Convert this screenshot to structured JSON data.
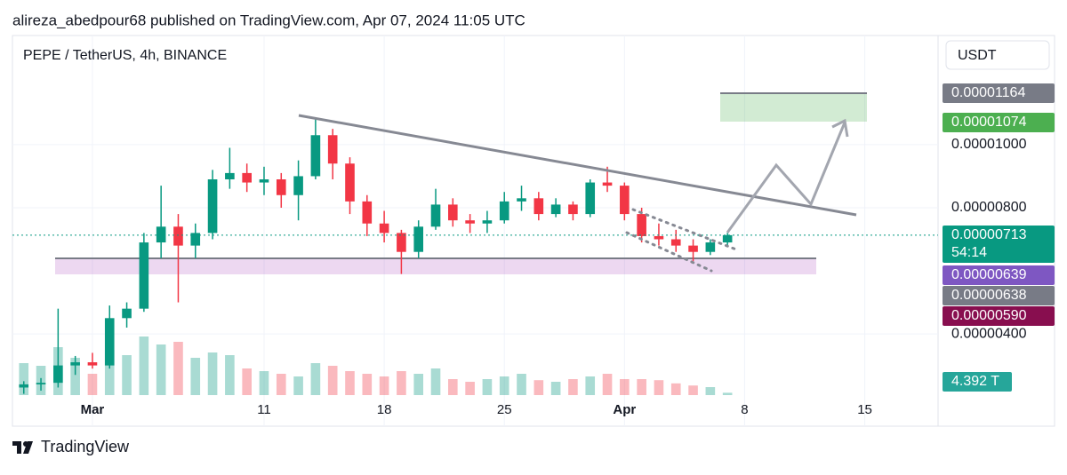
{
  "header": {
    "text": "alireza_abedpour68 published on TradingView.com, Apr 07, 2024 11:05 UTC"
  },
  "toolbar": {
    "currency": "USDT"
  },
  "footer": {
    "brand": "TradingView"
  },
  "chart_data": {
    "type": "candlestick",
    "title": "PEPE / TetherUS, 4h, BINANCE",
    "x": [
      -3,
      -2,
      -1,
      0,
      1,
      2,
      3,
      4,
      5,
      6,
      7,
      8,
      9,
      10,
      11,
      12,
      13,
      14,
      15,
      16,
      17,
      18,
      19,
      20,
      21,
      22,
      23,
      24,
      25,
      26,
      27,
      28,
      29,
      30,
      31,
      32,
      33,
      34,
      35,
      36,
      37,
      38
    ],
    "open": [
      2.3e-06,
      2.4e-06,
      2.45e-06,
      3e-06,
      3.1e-06,
      3e-06,
      4.5e-06,
      4.8e-06,
      6.9e-06,
      7.4e-06,
      6.8e-06,
      7.2e-06,
      8.9e-06,
      9.1e-06,
      8.8e-06,
      8.9e-06,
      8.4e-06,
      9e-06,
      1.03e-05,
      9.4e-06,
      8.2e-06,
      7.5e-06,
      7.2e-06,
      6.6e-06,
      7.4e-06,
      8.1e-06,
      7.6e-06,
      7.5e-06,
      7.6e-06,
      8.2e-06,
      8.3e-06,
      7.8e-06,
      8.1e-06,
      7.8e-06,
      8.8e-06,
      8.7e-06,
      7.8e-06,
      7.1e-06,
      7e-06,
      6.8e-06,
      6.6e-06,
      6.9e-06
    ],
    "high": [
      2.5e-06,
      2.6e-06,
      4.8e-06,
      3.3e-06,
      3.4e-06,
      4.9e-06,
      5e-06,
      7.2e-06,
      8.7e-06,
      7.8e-06,
      7.5e-06,
      9.2e-06,
      9.9e-06,
      9.4e-06,
      9.3e-06,
      9.1e-06,
      9.5e-06,
      1.085e-05,
      1.05e-05,
      9.6e-06,
      8.4e-06,
      7.9e-06,
      7.3e-06,
      7.6e-06,
      8.6e-06,
      8.3e-06,
      7.8e-06,
      7.9e-06,
      8.5e-06,
      8.7e-06,
      8.5e-06,
      8.3e-06,
      8.2e-06,
      8.9e-06,
      9.3e-06,
      8.8e-06,
      8e-06,
      7.5e-06,
      7.3e-06,
      7e-06,
      7e-06,
      7.2e-06
    ],
    "low": [
      2.1e-06,
      2.2e-06,
      2.3e-06,
      2.7e-06,
      2.9e-06,
      2.9e-06,
      4.2e-06,
      4.7e-06,
      6.4e-06,
      5e-06,
      6.4e-06,
      7e-06,
      8.6e-06,
      8.5e-06,
      8.4e-06,
      8e-06,
      7.6e-06,
      8.9e-06,
      8.9e-06,
      7.8e-06,
      7.1e-06,
      6.9e-06,
      5.9e-06,
      6.4e-06,
      7.3e-06,
      7.4e-06,
      7.2e-06,
      7.2e-06,
      7.5e-06,
      7.9e-06,
      7.6e-06,
      7.7e-06,
      7.6e-06,
      7.7e-06,
      8.5e-06,
      7.6e-06,
      6.9e-06,
      6.8e-06,
      6.6e-06,
      6.3e-06,
      6.5e-06,
      6.8e-06
    ],
    "close": [
      2.4e-06,
      2.45e-06,
      3e-06,
      3.1e-06,
      3e-06,
      4.5e-06,
      4.8e-06,
      6.9e-06,
      7.4e-06,
      6.8e-06,
      7.2e-06,
      8.9e-06,
      9.1e-06,
      8.8e-06,
      8.9e-06,
      8.4e-06,
      9e-06,
      1.03e-05,
      9.4e-06,
      8.2e-06,
      7.5e-06,
      7.2e-06,
      6.6e-06,
      7.4e-06,
      8.1e-06,
      7.6e-06,
      7.5e-06,
      7.6e-06,
      8.2e-06,
      8.3e-06,
      7.8e-06,
      8.1e-06,
      7.8e-06,
      8.8e-06,
      8.7e-06,
      7.8e-06,
      7.1e-06,
      7e-06,
      6.8e-06,
      6.6e-06,
      6.9e-06,
      7.13e-06
    ],
    "volume": [
      60,
      55,
      90,
      70,
      40,
      85,
      75,
      110,
      95,
      100,
      70,
      80,
      75,
      50,
      45,
      40,
      35,
      60,
      55,
      45,
      40,
      35,
      45,
      40,
      50,
      30,
      25,
      30,
      35,
      40,
      28,
      25,
      30,
      35,
      40,
      30,
      30,
      28,
      22,
      18,
      15,
      4.392
    ],
    "volume_label": "4.392 T",
    "volume_ylim": [
      0,
      200
    ],
    "up_color": "#089981",
    "down_color": "#f23645",
    "xlim": [
      -3.66,
      50.27
    ],
    "xticks": [
      {
        "value": 1,
        "label": "Mar"
      },
      11,
      18,
      25,
      {
        "value": 32,
        "label": "Apr"
      },
      {
        "value": 39,
        "label": "8"
      },
      {
        "value": 46,
        "label": "15"
      }
    ],
    "ylim": [
      2.06e-06,
      1.346e-05
    ],
    "yticks": [
      {
        "value": 1e-05,
        "label": "0.00001000"
      },
      {
        "value": 8e-06,
        "label": "0.00000800"
      },
      {
        "value": 4e-06,
        "label": "0.00000400"
      }
    ],
    "grid": true,
    "last_price": 7.13e-06,
    "countdown": "54:14",
    "price_labels": [
      {
        "value": 1.164e-05,
        "label": "0.00001164",
        "color": "#787b86"
      },
      {
        "value": 1.074e-05,
        "label": "0.00001074",
        "color": "#4caf50"
      },
      {
        "value": 7.13e-06,
        "label": "0.00000713",
        "color": "#089981"
      },
      {
        "value": 6.39e-06,
        "label": "0.00000639",
        "color": "#7e57c2"
      },
      {
        "value": 6.38e-06,
        "label": "0.00000638",
        "color": "#787b86"
      },
      {
        "value": 5.9e-06,
        "label": "0.00000590",
        "color": "#880e4f"
      }
    ]
  }
}
